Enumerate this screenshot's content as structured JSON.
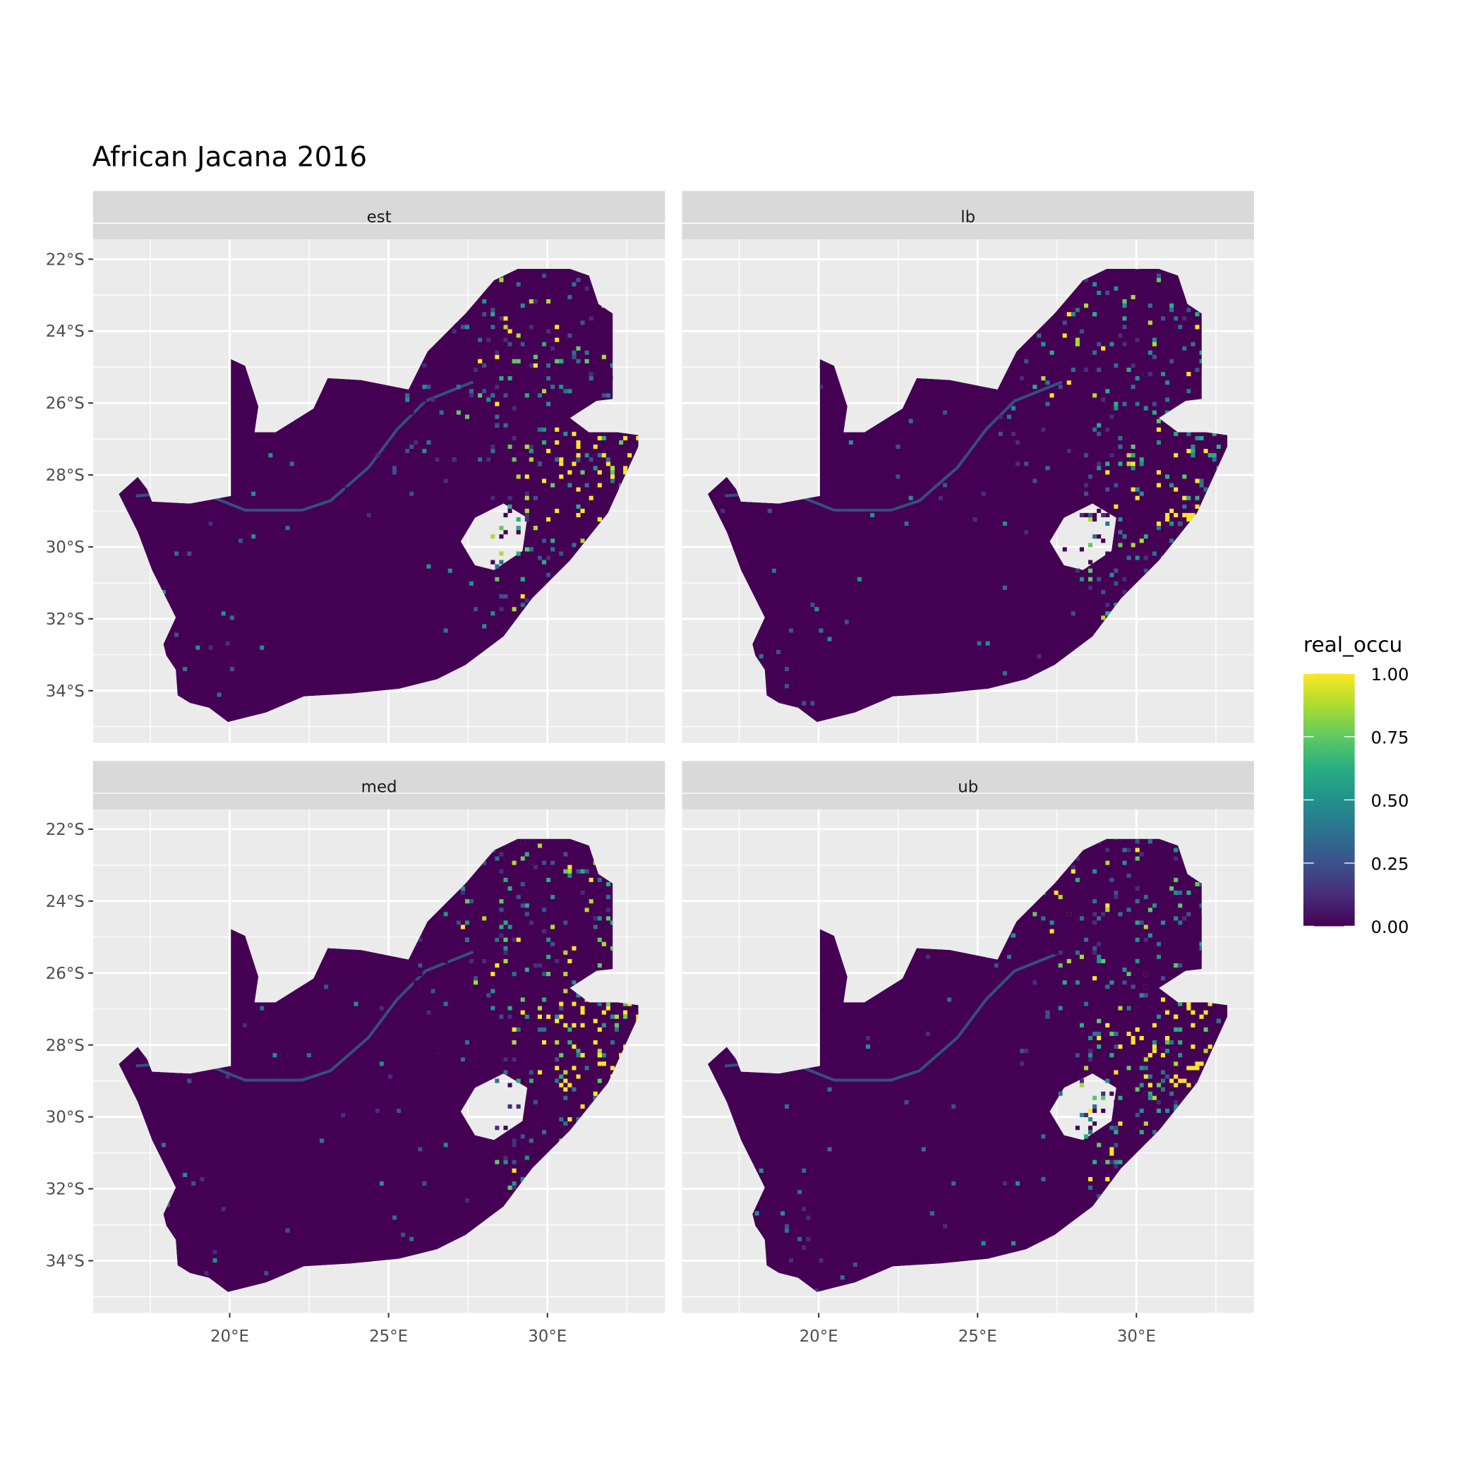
{
  "chart_data": {
    "type": "heatmap",
    "subtype": "faceted raster map",
    "title": "African Jacana 2016",
    "facets": [
      "est",
      "lb",
      "med",
      "ub"
    ],
    "x_ticks": [
      "20°E",
      "25°E",
      "30°E"
    ],
    "x_tick_values": [
      20,
      25,
      30
    ],
    "y_ticks": [
      "22°S",
      "24°S",
      "26°S",
      "28°S",
      "30°S",
      "32°S",
      "34°S"
    ],
    "y_tick_values": [
      -22,
      -24,
      -26,
      -28,
      -30,
      -32,
      -34
    ],
    "xlim": [
      15.7,
      33.7
    ],
    "ylim": [
      -35.45,
      -21.45
    ],
    "grid": true,
    "legend": {
      "title": "real_occu",
      "position": "right",
      "colormap": "viridis",
      "labels": [
        "1.00",
        "0.75",
        "0.50",
        "0.25",
        "0.00"
      ],
      "values": [
        1,
        0.75,
        0.5,
        0.25,
        0
      ],
      "colors": [
        "#FDE725",
        "#5EC962",
        "#21918C",
        "#3B528B",
        "#440154"
      ]
    },
    "panel_background": "#EBEBEB",
    "strip_background": "#D9D9D9"
  }
}
